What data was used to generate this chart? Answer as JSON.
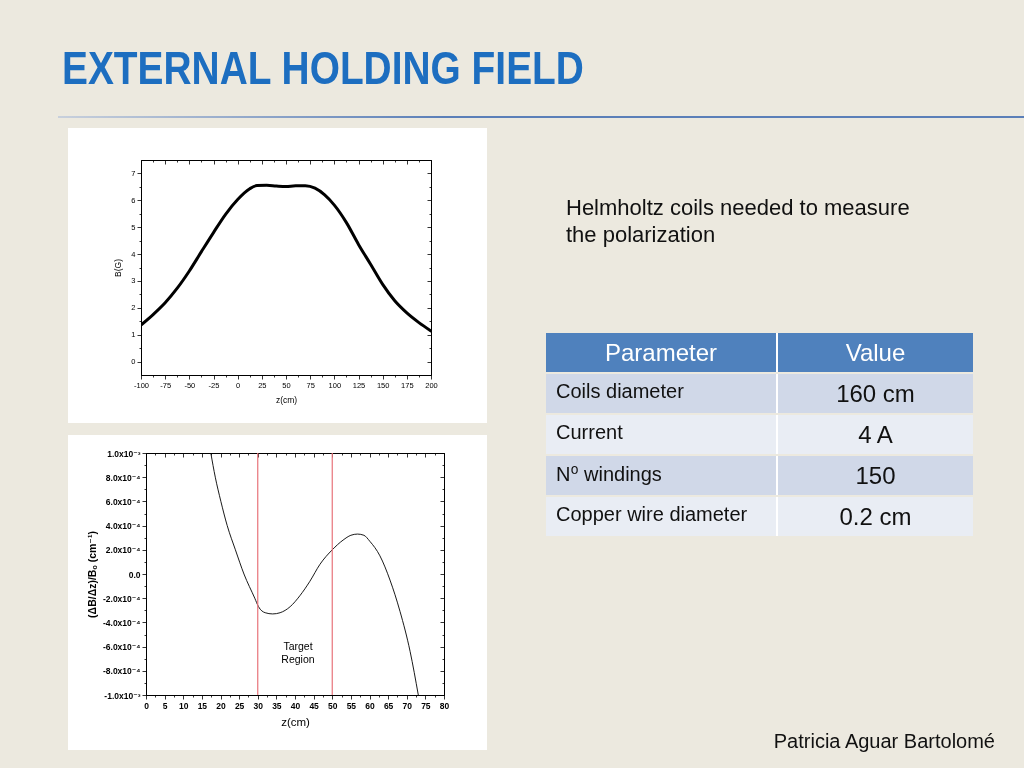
{
  "chart_data": [
    {
      "type": "other",
      "title": "EXTERNAL HOLDING FIELD"
    },
    {
      "type": "line",
      "xlabel": "z(cm)",
      "ylabel": "B(G)",
      "xlim": [
        -100,
        200
      ],
      "ylim": [
        -0.5,
        7.5
      ],
      "xticks": [
        -100,
        {
          "value": -87.5,
          "label": null
        },
        -75,
        {
          "value": -62.5,
          "label": null
        },
        -50,
        {
          "value": -37.5,
          "label": null
        },
        -25,
        {
          "value": -12.5,
          "label": null
        },
        0,
        {
          "value": 12.5,
          "label": null
        },
        25,
        {
          "value": 37.5,
          "label": null
        },
        50,
        {
          "value": 62.5,
          "label": null
        },
        75,
        {
          "value": 87.5,
          "label": null
        },
        100,
        {
          "value": 112.5,
          "label": null
        },
        125,
        {
          "value": 137.5,
          "label": null
        },
        150,
        {
          "value": 162.5,
          "label": null
        },
        175,
        {
          "value": 187.5,
          "label": null
        },
        200
      ],
      "yticks": [
        0,
        {
          "value": 0.5,
          "label": null
        },
        1,
        {
          "value": 1.5,
          "label": null
        },
        2,
        {
          "value": 2.5,
          "label": null
        },
        3,
        {
          "value": 3.5,
          "label": null
        },
        4,
        {
          "value": 4.5,
          "label": null
        },
        5,
        {
          "value": 5.5,
          "label": null
        },
        6,
        {
          "value": 6.5,
          "label": null
        },
        7
      ],
      "x": [
        -100,
        -87.5,
        -75,
        -62.5,
        -50,
        -37.5,
        -25,
        -12.5,
        0,
        12.5,
        20,
        30,
        40,
        50,
        60,
        70,
        80,
        90,
        100,
        112.5,
        125,
        137.5,
        150,
        162.5,
        175,
        187.5,
        200
      ],
      "series": [
        {
          "color": "#000000",
          "values": [
            1.36,
            1.75,
            2.19,
            2.73,
            3.37,
            4.09,
            4.8,
            5.48,
            6.03,
            6.43,
            6.55,
            6.56,
            6.53,
            6.51,
            6.54,
            6.54,
            6.45,
            6.2,
            5.82,
            5.17,
            4.36,
            3.62,
            2.87,
            2.26,
            1.81,
            1.45,
            1.14
          ]
        }
      ]
    },
    {
      "type": "line",
      "xlabel": "z(cm)",
      "ylabel": "(ΔB/Δz)/Bₒ (cm⁻¹)",
      "xlim": [
        0,
        80
      ],
      "ylim": [
        -0.001,
        0.001
      ],
      "xticks": [
        0,
        {
          "value": 2.5,
          "label": null
        },
        5,
        {
          "value": 7.5,
          "label": null
        },
        10,
        {
          "value": 12.5,
          "label": null
        },
        15,
        {
          "value": 17.5,
          "label": null
        },
        20,
        {
          "value": 22.5,
          "label": null
        },
        25,
        {
          "value": 27.5,
          "label": null
        },
        30,
        {
          "value": 32.5,
          "label": null
        },
        35,
        {
          "value": 37.5,
          "label": null
        },
        40,
        {
          "value": 42.5,
          "label": null
        },
        45,
        {
          "value": 47.5,
          "label": null
        },
        50,
        {
          "value": 52.5,
          "label": null
        },
        55,
        {
          "value": 57.5,
          "label": null
        },
        60,
        {
          "value": 62.5,
          "label": null
        },
        65,
        {
          "value": 67.5,
          "label": null
        },
        70,
        {
          "value": 72.5,
          "label": null
        },
        75,
        {
          "value": 77.5,
          "label": null
        },
        80
      ],
      "yticks": [
        {
          "value": -0.001,
          "label": "-1.0x10⁻³"
        },
        {
          "value": -0.0009,
          "label": null
        },
        {
          "value": -0.0008,
          "label": "-8.0x10⁻⁴"
        },
        {
          "value": -0.0007,
          "label": null
        },
        {
          "value": -0.0006,
          "label": "-6.0x10⁻⁴"
        },
        {
          "value": -0.0005,
          "label": null
        },
        {
          "value": -0.0004,
          "label": "-4.0x10⁻⁴"
        },
        {
          "value": -0.0003,
          "label": null
        },
        {
          "value": -0.0002,
          "label": "-2.0x10⁻⁴"
        },
        {
          "value": -0.0001,
          "label": null
        },
        {
          "value": 0,
          "label": "0.0"
        },
        {
          "value": 0.0001,
          "label": null
        },
        {
          "value": 0.0002,
          "label": "2.0x10⁻⁴"
        },
        {
          "value": 0.0003,
          "label": null
        },
        {
          "value": 0.0004,
          "label": "4.0x10⁻⁴"
        },
        {
          "value": 0.0005,
          "label": null
        },
        {
          "value": 0.0006,
          "label": "6.0x10⁻⁴"
        },
        {
          "value": 0.0007,
          "label": null
        },
        {
          "value": 0.0008,
          "label": "8.0x10⁻⁴"
        },
        {
          "value": 0.0009,
          "label": null
        },
        {
          "value": 0.001,
          "label": "1.0x10⁻³"
        }
      ],
      "x": [
        17.4,
        18.6,
        20.1,
        21.8,
        24,
        26.3,
        29.2,
        30.2,
        32,
        34,
        36,
        38.7,
        41.3,
        44,
        46.7,
        50,
        52.9,
        55,
        56.8,
        58.5,
        60.1,
        62.8,
        65.5,
        68.2,
        70.9,
        73.1
      ],
      "series": [
        {
          "color": "#000000",
          "values": [
            0.001,
            0.0008,
            0.0006,
            0.0004,
            0.0002,
            0,
            -0.0002,
            -0.00027,
            -0.00032,
            -0.00033,
            -0.00032,
            -0.00027,
            -0.00018,
            -6e-05,
            8e-05,
            0.0002,
            0.00028,
            0.00032,
            0.00033,
            0.00032,
            0.00027,
            0.00015,
            -5e-05,
            -0.00031,
            -0.00064,
            -0.001
          ]
        }
      ],
      "ref_lines": [
        {
          "axis": "x",
          "value": 30,
          "color": "#e8737a"
        },
        {
          "axis": "x",
          "value": 50,
          "color": "#e8737a"
        }
      ],
      "annotations": [
        "Target Region"
      ]
    },
    {
      "type": "other",
      "annotations": [
        "Helmholtz coils needed to measure the polarization",
        "Parameter",
        "Value",
        "Coils diameter",
        "160 cm",
        "Current",
        "4 A",
        "N⁰ windings",
        "150",
        "Copper wire diameter",
        "0.2 cm",
        "Patricia Aguar Bartolomé"
      ]
    }
  ]
}
